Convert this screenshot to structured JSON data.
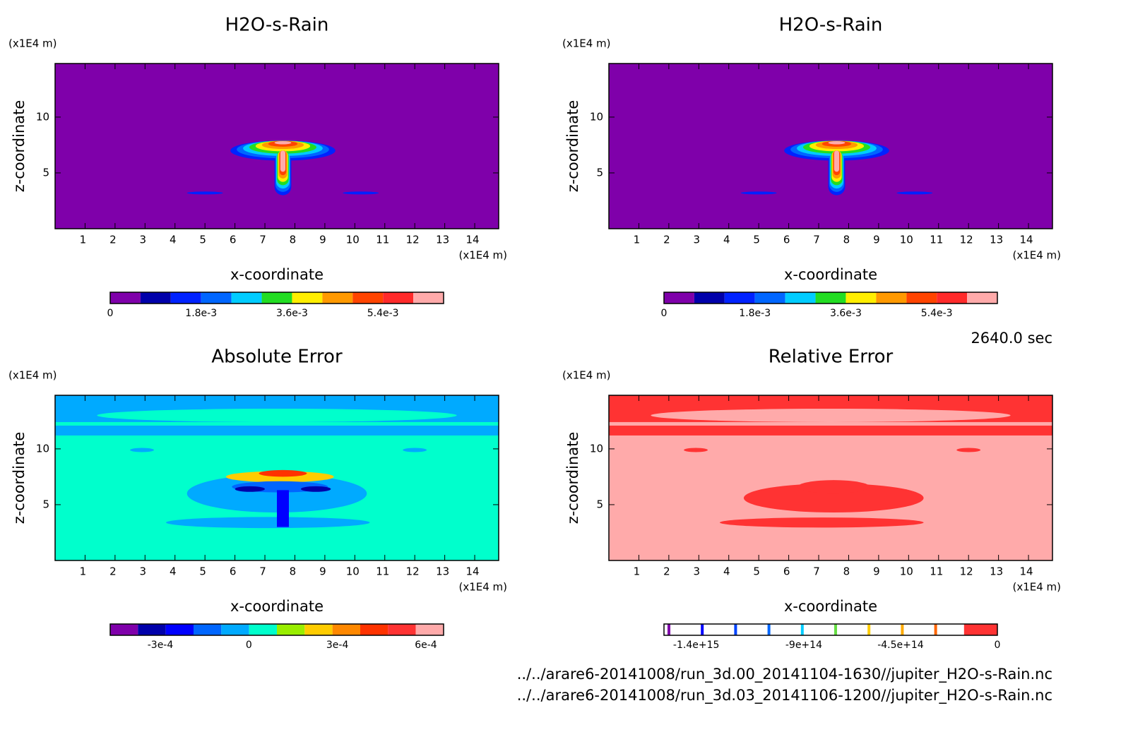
{
  "chart_data": [
    {
      "type": "contour",
      "title": "H2O-s-Rain",
      "xlabel": "x-coordinate",
      "ylabel": "z-coordinate",
      "x_unit": "(x1E4 m)",
      "y_unit": "(x1E4 m)",
      "xlim": [
        0,
        14.8
      ],
      "ylim": [
        0,
        14.8
      ],
      "xticks": [
        1,
        2,
        3,
        4,
        5,
        6,
        7,
        8,
        9,
        10,
        11,
        12,
        13,
        14
      ],
      "yticks": [
        5,
        10
      ],
      "colorbar": {
        "colors": [
          "#7f00aa",
          "#0000aa",
          "#0022ff",
          "#0066ff",
          "#00ccff",
          "#22dd22",
          "#ffee00",
          "#ff9900",
          "#ff4400",
          "#ff2a2a",
          "#ffaaaa"
        ],
        "clim": [
          0,
          0.0066
        ],
        "ticks": [
          0,
          {
            "value": 0.0018,
            "label": "1.8e-3"
          },
          {
            "value": 0.0036,
            "label": "3.6e-3"
          },
          {
            "value": 0.0054,
            "label": "5.4e-3"
          }
        ]
      }
    },
    {
      "type": "contour",
      "title": "H2O-s-Rain",
      "xlabel": "x-coordinate",
      "ylabel": "z-coordinate",
      "x_unit": "(x1E4 m)",
      "y_unit": "(x1E4 m)",
      "xlim": [
        0,
        14.8
      ],
      "ylim": [
        0,
        14.8
      ],
      "xticks": [
        1,
        2,
        3,
        4,
        5,
        6,
        7,
        8,
        9,
        10,
        11,
        12,
        13,
        14
      ],
      "yticks": [
        5,
        10
      ],
      "colorbar": {
        "colors": [
          "#7f00aa",
          "#0000aa",
          "#0022ff",
          "#0066ff",
          "#00ccff",
          "#22dd22",
          "#ffee00",
          "#ff9900",
          "#ff4400",
          "#ff2a2a",
          "#ffaaaa"
        ],
        "clim": [
          0,
          0.0066
        ],
        "ticks": [
          0,
          {
            "value": 0.0018,
            "label": "1.8e-3"
          },
          {
            "value": 0.0036,
            "label": "3.6e-3"
          },
          {
            "value": 0.0054,
            "label": "5.4e-3"
          }
        ]
      }
    },
    {
      "type": "contour",
      "title": "Absolute Error",
      "xlabel": "x-coordinate",
      "ylabel": "z-coordinate",
      "x_unit": "(x1E4 m)",
      "y_unit": "(x1E4 m)",
      "xlim": [
        0,
        14.8
      ],
      "ylim": [
        0,
        14.8
      ],
      "xticks": [
        1,
        2,
        3,
        4,
        5,
        6,
        7,
        8,
        9,
        10,
        11,
        12,
        13,
        14
      ],
      "yticks": [
        5,
        10
      ],
      "colorbar": {
        "colors": [
          "#7f00aa",
          "#0000aa",
          "#0000ff",
          "#0066ff",
          "#00aaff",
          "#00ffcc",
          "#99ee00",
          "#ffcc00",
          "#ff8800",
          "#ff3300",
          "#ff3333",
          "#ffaaaa"
        ],
        "clim": [
          -0.00047,
          0.00066
        ],
        "ticks": [
          {
            "value": -0.0003,
            "label": "-3e-4"
          },
          0,
          {
            "value": 0.0003,
            "label": "3e-4"
          },
          {
            "value": 0.0006,
            "label": "6e-4"
          }
        ]
      }
    },
    {
      "type": "contour",
      "title": "Relative Error",
      "xlabel": "x-coordinate",
      "ylabel": "z-coordinate",
      "x_unit": "(x1E4 m)",
      "y_unit": "(x1E4 m)",
      "xlim": [
        0,
        14.8
      ],
      "ylim": [
        0,
        14.8
      ],
      "xticks": [
        1,
        2,
        3,
        4,
        5,
        6,
        7,
        8,
        9,
        10,
        11,
        12,
        13,
        14
      ],
      "yticks": [
        5,
        10
      ],
      "colorbar": {
        "style": "lines",
        "colors": [
          "#7f00aa",
          "#0000ff",
          "#0044ff",
          "#0066ff",
          "#00ccff",
          "#66dd44",
          "#ffcc00",
          "#ffaa00",
          "#ff6600",
          "#ff3333"
        ],
        "clim": [
          -1550000000000000.0,
          0
        ],
        "ticks": [
          {
            "value": -1400000000000000.0,
            "label": "-1.4e+15"
          },
          {
            "value": -900000000000000.0,
            "label": "-9e+14"
          },
          {
            "value": -450000000000000.0,
            "label": "-4.5e+14"
          },
          0
        ]
      }
    }
  ],
  "time_label": "2640.0 sec",
  "files": [
    "../../arare6-20141008/run_3d.00_20141104-1630//jupiter_H2O-s-Rain.nc",
    "../../arare6-20141008/run_3d.03_20141106-1200//jupiter_H2O-s-Rain.nc"
  ]
}
